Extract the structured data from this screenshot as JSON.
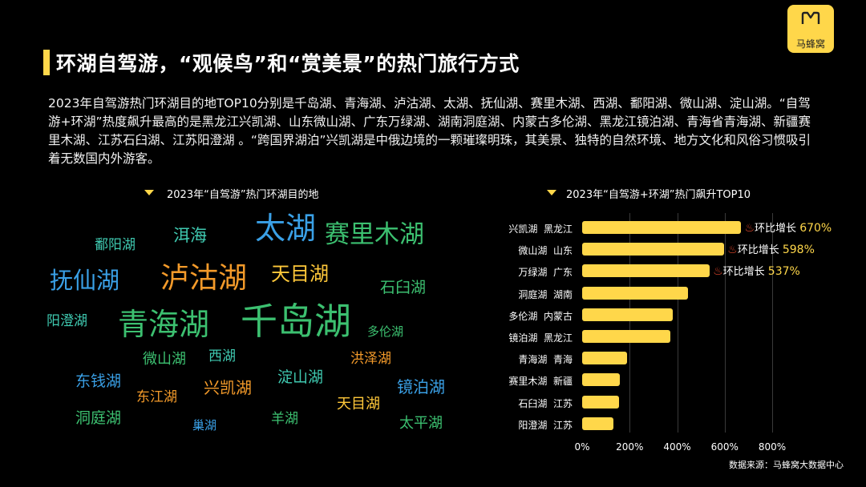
{
  "brand": {
    "logo_text": "马蜂窝"
  },
  "title": "环湖自驾游，“观候鸟”和“赏美景”的热门旅行方式",
  "intro": "2023年自驾游热门环湖目的地TOP10分别是千岛湖、青海湖、泸沽湖、太湖、抚仙湖、赛里木湖、西湖、鄱阳湖、微山湖、淀山湖。“自驾游+环湖”热度飙升最高的是黑龙江兴凯湖、山东微山湖、广东万绿湖、湖南洞庭湖、内蒙古多伦湖、黑龙江镜泊湖、青海省青海湖、新疆赛里木湖、江苏石臼湖、江苏阳澄湖 。“跨国界湖泊”兴凯湖是中俄边境的一颗璀璨明珠，其美景、独特的自然环境、地方文化和风俗习惯吸引着无数国内外游客。",
  "wordcloud": {
    "title": "2023年“自驾游”热门环湖目的地",
    "words": [
      {
        "text": "鄱阳湖",
        "color": "#3fc9b0"
      },
      {
        "text": "洱海",
        "color": "#3fc9b0"
      },
      {
        "text": "太湖",
        "color": "#3aa0e6"
      },
      {
        "text": "赛里木湖",
        "color": "#3cc070"
      },
      {
        "text": "抚仙湖",
        "color": "#3aa0e6"
      },
      {
        "text": "泸沽湖",
        "color": "#f39a2a"
      },
      {
        "text": "天目湖",
        "color": "#ffc83a"
      },
      {
        "text": "石臼湖",
        "color": "#3cc070"
      },
      {
        "text": "阳澄湖",
        "color": "#3fc9b0"
      },
      {
        "text": "青海湖",
        "color": "#3cc070"
      },
      {
        "text": "千岛湖",
        "color": "#3cc070"
      },
      {
        "text": "多伦湖",
        "color": "#3cc070"
      },
      {
        "text": "微山湖",
        "color": "#3cc070"
      },
      {
        "text": "西湖",
        "color": "#3fc9b0"
      },
      {
        "text": "洪泽湖",
        "color": "#f39a2a"
      },
      {
        "text": "东钱湖",
        "color": "#3aa0e6"
      },
      {
        "text": "兴凯湖",
        "color": "#f39a2a"
      },
      {
        "text": "淀山湖",
        "color": "#3fc9b0"
      },
      {
        "text": "镜泊湖",
        "color": "#3aa0e6"
      },
      {
        "text": "东江湖",
        "color": "#f39a2a"
      },
      {
        "text": "天目湖",
        "color": "#ffc83a"
      },
      {
        "text": "洞庭湖",
        "color": "#3cc070"
      },
      {
        "text": "巢湖",
        "color": "#3aa0e6"
      },
      {
        "text": "羊湖",
        "color": "#3cc070"
      },
      {
        "text": "太平湖",
        "color": "#3cc070"
      }
    ]
  },
  "chart_data": {
    "type": "bar",
    "orientation": "horizontal",
    "title": "2023年“自驾游+环湖”热门飙升TOP10",
    "categories": [
      "兴凯湖  黑龙江",
      "微山湖  山东",
      "万绿湖  广东",
      "洞庭湖  湖南",
      "多伦湖  内蒙古",
      "镜泊湖  黑龙江",
      "青海湖  青海",
      "赛里木湖  新疆",
      "石臼湖  江苏",
      "阳澄湖  江苏"
    ],
    "values": [
      670,
      598,
      537,
      445,
      380,
      370,
      190,
      160,
      155,
      130
    ],
    "annotations": [
      {
        "index": 0,
        "label": "环比增长",
        "value": "670%"
      },
      {
        "index": 1,
        "label": "环比增长",
        "value": "598%"
      },
      {
        "index": 2,
        "label": "环比增长",
        "value": "537%"
      }
    ],
    "xlim": [
      0,
      800
    ],
    "xticks": [
      "0%",
      "200%",
      "400%",
      "600%",
      "800%"
    ],
    "bar_color": "#ffd74a",
    "grid": true
  },
  "source": "数据来源：马蜂窝大数据中心"
}
